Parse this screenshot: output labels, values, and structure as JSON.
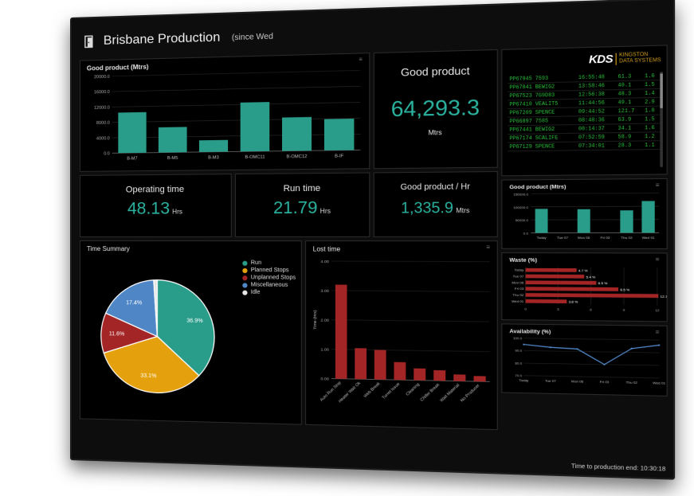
{
  "header": {
    "title": "Brisbane Production",
    "subtitle": "(since Wed"
  },
  "logo": {
    "mark": "KDS",
    "company_line1": "KINGSTON",
    "company_line2": "DATA SYSTEMS"
  },
  "kpis": {
    "good_product": {
      "title": "Good product",
      "value": "64,293.3",
      "unit": "Mtrs"
    },
    "operating_time": {
      "title": "Operating time",
      "value": "48.13",
      "unit": "Hrs"
    },
    "run_time": {
      "title": "Run time",
      "value": "21.79",
      "unit": "Hrs"
    },
    "good_per_hr": {
      "title": "Good product / Hr",
      "value": "1,335.9",
      "unit": "Mtrs"
    }
  },
  "jobs": [
    [
      "PP67945 7593",
      "16:55:48",
      "61.3",
      "1.6"
    ],
    [
      "PP67841 BEWIG2",
      "13:58:46",
      "40.1",
      "1.5"
    ],
    [
      "PP67523 7G9D83",
      "12:56:38",
      "48.3",
      "1.4"
    ],
    [
      "PP67410 VEALIT5",
      "11:44:56",
      "49.1",
      "2.9"
    ],
    [
      "PP67209 SPENCE",
      "09:44:52",
      "121.7",
      "1.8"
    ],
    [
      "PP66897 7585",
      "08:48:36",
      "63.9",
      "1.5"
    ],
    [
      "PP67441 BEWIG2",
      "08:14:37",
      "34.1",
      "1.6"
    ],
    [
      "PP67174 SCALIFE",
      "07:52:59",
      "58.9",
      "1.2"
    ],
    [
      "PP67129 SPENCE",
      "07:34:01",
      "28.3",
      "1.1"
    ]
  ],
  "footer": {
    "text": "Time to production end: 10:30:18"
  },
  "chart_data": [
    {
      "type": "bar",
      "title": "Good product (Mtrs)",
      "categories": [
        "B-M7",
        "B-M5",
        "B-M3",
        "B-OMC11",
        "B-OMC12",
        "B-IF"
      ],
      "values": [
        10500,
        6500,
        3000,
        12500,
        8500,
        7900
      ],
      "ylim": [
        0,
        20000
      ],
      "yticks": [
        "0.0",
        "4000.0",
        "8000.0",
        "12000.0",
        "16000.0",
        "20000.0"
      ],
      "color": "#2a9d8a"
    },
    {
      "type": "pie",
      "title": "Time Summary",
      "labels": [
        "Run",
        "Planned Stops",
        "Unplanned Stops",
        "Miscellaneous",
        "Idle"
      ],
      "values": [
        36.9,
        33.1,
        11.6,
        17.4,
        1.0
      ],
      "value_labels": [
        "36.9%",
        "33.1%",
        "11.6%",
        "17.4%",
        ""
      ],
      "colors": [
        "#2a9d8a",
        "#e5a00d",
        "#a42525",
        "#4f86c6",
        "#e6e6e6"
      ]
    },
    {
      "type": "bar",
      "title": "Lost time",
      "ylabel": "Time (Hrs)",
      "categories": [
        "Auto Run Stop",
        "Heater Wait Ok",
        "Web Break",
        "Turret Issue",
        "Cleaning",
        "Chiller Break",
        "Wait Material",
        "No Producer"
      ],
      "values": [
        3.2,
        1.05,
        1.0,
        0.6,
        0.4,
        0.35,
        0.22,
        0.18
      ],
      "ylim": [
        0,
        4.0
      ],
      "yticks": [
        "0.00",
        "1.00",
        "2.00",
        "3.00",
        "4.00"
      ],
      "color": "#a42525"
    },
    {
      "type": "bar",
      "title": "Good product (Mtrs)",
      "categories": [
        "Today",
        "Tue 07",
        "Mon 06",
        "Fri 03",
        "Thu 02",
        "Wed 01"
      ],
      "values": [
        92000,
        0,
        90000,
        0,
        85000,
        120000
      ],
      "ylim": [
        0,
        150000
      ],
      "yticks": [
        "0.0",
        "50000.0",
        "100000.0",
        "150000.0"
      ],
      "color": "#2a9d8a"
    },
    {
      "type": "bar",
      "orientation": "horizontal",
      "title": "Waste (%)",
      "categories": [
        "Today",
        "Tue 07",
        "Mon 06",
        "Fri 03",
        "Thu 02",
        "Wed 01"
      ],
      "values": [
        4.7,
        5.4,
        6.5,
        8.5,
        12.1,
        3.8
      ],
      "value_labels": [
        "4.7 %",
        "5.4 %",
        "6.5 %",
        "8.5 %",
        "12.1 %",
        "3.8 %"
      ],
      "xlim": [
        0,
        12
      ],
      "xticks": [
        "0",
        "3",
        "6",
        "9",
        "12"
      ],
      "color": "#a42525"
    },
    {
      "type": "line",
      "title": "Availability (%)",
      "categories": [
        "Today",
        "Tue 07",
        "Mon 06",
        "Fri 03",
        "Thu 02",
        "Wed 01"
      ],
      "values": [
        95,
        93,
        92,
        80,
        93,
        96
      ],
      "ylim": [
        70,
        100
      ],
      "yticks": [
        "70.0",
        "80.0",
        "90.0",
        "100.0"
      ],
      "color": "#4f86c6"
    }
  ]
}
